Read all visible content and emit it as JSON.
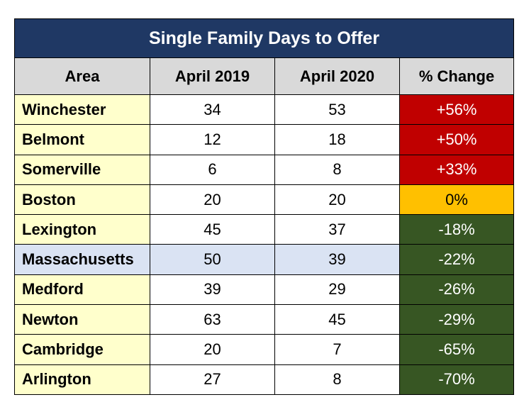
{
  "chart_data": {
    "type": "table",
    "title": "Single Family Days to Offer",
    "columns": [
      "Area",
      "April 2019",
      "April 2020",
      "% Change"
    ],
    "rows": [
      {
        "area": "Winchester",
        "april_2019": "34",
        "april_2020": "53",
        "change": "+56%",
        "trend": "up"
      },
      {
        "area": "Belmont",
        "april_2019": "12",
        "april_2020": "18",
        "change": "+50%",
        "trend": "up"
      },
      {
        "area": "Somerville",
        "april_2019": "6",
        "april_2020": "8",
        "change": "+33%",
        "trend": "up"
      },
      {
        "area": "Boston",
        "april_2019": "20",
        "april_2020": "20",
        "change": "0%",
        "trend": "flat"
      },
      {
        "area": "Lexington",
        "april_2019": "45",
        "april_2020": "37",
        "change": "-18%",
        "trend": "down"
      },
      {
        "area": "Massachusetts",
        "april_2019": "50",
        "april_2020": "39",
        "change": "-22%",
        "trend": "down",
        "highlight": true
      },
      {
        "area": "Medford",
        "april_2019": "39",
        "april_2020": "29",
        "change": "-26%",
        "trend": "down"
      },
      {
        "area": "Newton",
        "april_2019": "63",
        "april_2020": "45",
        "change": "-29%",
        "trend": "down"
      },
      {
        "area": "Cambridge",
        "april_2019": "20",
        "april_2020": "7",
        "change": "-65%",
        "trend": "down"
      },
      {
        "area": "Arlington",
        "april_2019": "27",
        "april_2020": "8",
        "change": "-70%",
        "trend": "down"
      }
    ]
  },
  "colors": {
    "title_bg": "#1f3864",
    "header_bg": "#d9d9d9",
    "area_bg": "#ffffcc",
    "highlight_bg": "#dae3f3",
    "increase": "#c00000",
    "no_change": "#ffc000",
    "decrease": "#375623"
  }
}
